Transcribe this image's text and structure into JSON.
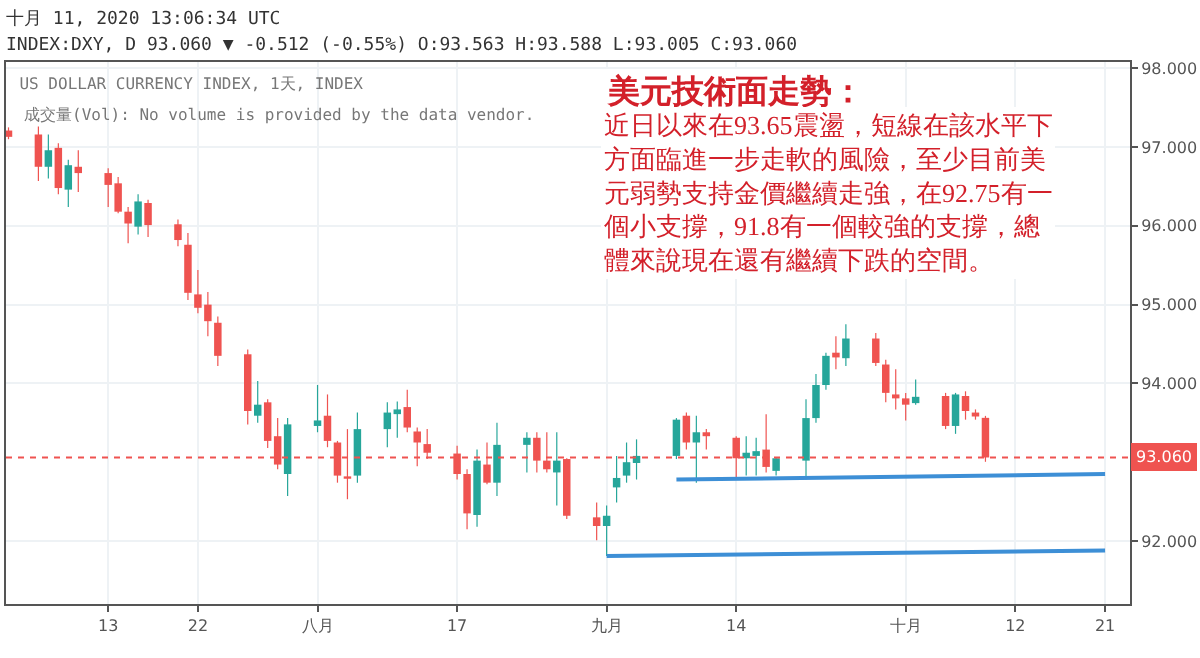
{
  "chart_data": {
    "type": "candlestick",
    "title": "US DOLLAR CURRENCY INDEX, 1天, INDEX",
    "subtitle": "INDEX:DXY, D 93.060 ▼ -0.512 (-0.55%) O:93.563 H:93.588 L:93.005 C:93.060",
    "annotations": [
      "十月 11, 2020 13:06:34 UTC",
      "成交量(Vol): No volume is provided by the data vendor.",
      "美元技術面走勢：",
      "近日以來在93.65震盪，短線在該水平下方面臨進一步走軟的風險，至少目前美元弱勢支持金價繼續走強，在92.75有一個小支撐，91.8有一個較強的支撐，總體來說現在還有繼續下跌的空間。"
    ],
    "x": [
      "2020-07-03",
      "2020-07-06",
      "2020-07-07",
      "2020-07-08",
      "2020-07-09",
      "2020-07-10",
      "2020-07-13",
      "2020-07-14",
      "2020-07-15",
      "2020-07-16",
      "2020-07-17",
      "2020-07-20",
      "2020-07-21",
      "2020-07-22",
      "2020-07-23",
      "2020-07-24",
      "2020-07-27",
      "2020-07-28",
      "2020-07-29",
      "2020-07-30",
      "2020-07-31",
      "2020-08-03",
      "2020-08-04",
      "2020-08-05",
      "2020-08-06",
      "2020-08-07",
      "2020-08-10",
      "2020-08-11",
      "2020-08-12",
      "2020-08-13",
      "2020-08-14",
      "2020-08-17",
      "2020-08-18",
      "2020-08-19",
      "2020-08-20",
      "2020-08-21",
      "2020-08-24",
      "2020-08-25",
      "2020-08-26",
      "2020-08-27",
      "2020-08-28",
      "2020-08-31",
      "2020-09-01",
      "2020-09-02",
      "2020-09-03",
      "2020-09-04",
      "2020-09-08",
      "2020-09-09",
      "2020-09-10",
      "2020-09-11",
      "2020-09-14",
      "2020-09-15",
      "2020-09-16",
      "2020-09-17",
      "2020-09-18",
      "2020-09-21",
      "2020-09-22",
      "2020-09-23",
      "2020-09-24",
      "2020-09-25",
      "2020-09-28",
      "2020-09-29",
      "2020-09-30",
      "2020-10-01",
      "2020-10-02",
      "2020-10-05",
      "2020-10-06",
      "2020-10-07",
      "2020-10-08",
      "2020-10-09"
    ],
    "ohlc": [
      [
        97.21,
        97.25,
        97.1,
        97.13
      ],
      [
        97.16,
        97.26,
        96.57,
        96.75
      ],
      [
        96.75,
        97.16,
        96.6,
        96.96
      ],
      [
        96.99,
        97.05,
        96.4,
        96.48
      ],
      [
        96.46,
        96.84,
        96.24,
        96.77
      ],
      [
        96.75,
        96.96,
        96.43,
        96.67
      ],
      [
        96.67,
        96.73,
        96.24,
        96.52
      ],
      [
        96.54,
        96.62,
        96.16,
        96.18
      ],
      [
        96.18,
        96.24,
        95.78,
        96.03
      ],
      [
        95.99,
        96.4,
        95.89,
        96.31
      ],
      [
        96.29,
        96.33,
        95.86,
        96.01
      ],
      [
        96.02,
        96.08,
        95.74,
        95.82
      ],
      [
        95.76,
        95.91,
        95.06,
        95.15
      ],
      [
        95.13,
        95.44,
        94.89,
        94.96
      ],
      [
        95.0,
        95.16,
        94.6,
        94.79
      ],
      [
        94.77,
        94.85,
        94.22,
        94.35
      ],
      [
        94.37,
        94.43,
        93.48,
        93.65
      ],
      [
        93.59,
        94.03,
        93.5,
        93.73
      ],
      [
        93.76,
        93.8,
        93.18,
        93.27
      ],
      [
        93.33,
        93.56,
        92.91,
        92.97
      ],
      [
        92.85,
        93.56,
        92.57,
        93.48
      ],
      [
        93.46,
        93.98,
        93.38,
        93.53
      ],
      [
        93.59,
        93.86,
        93.19,
        93.27
      ],
      [
        93.25,
        93.27,
        92.74,
        92.83
      ],
      [
        92.82,
        93.42,
        92.53,
        92.79
      ],
      [
        92.83,
        93.63,
        92.74,
        93.42
      ],
      [
        93.42,
        93.76,
        93.19,
        93.63
      ],
      [
        93.61,
        93.77,
        93.31,
        93.67
      ],
      [
        93.7,
        93.92,
        93.38,
        93.44
      ],
      [
        93.39,
        93.44,
        92.95,
        93.25
      ],
      [
        93.23,
        93.42,
        93.04,
        93.12
      ],
      [
        93.11,
        93.21,
        92.78,
        92.85
      ],
      [
        92.85,
        92.91,
        92.15,
        92.35
      ],
      [
        92.33,
        93.16,
        92.18,
        93.02
      ],
      [
        92.97,
        93.25,
        92.72,
        92.74
      ],
      [
        92.74,
        93.5,
        92.57,
        93.22
      ],
      [
        93.22,
        93.38,
        92.87,
        93.31
      ],
      [
        93.31,
        93.38,
        92.87,
        93.02
      ],
      [
        93.02,
        93.38,
        92.87,
        92.91
      ],
      [
        92.87,
        93.38,
        92.45,
        93.02
      ],
      [
        93.04,
        93.05,
        92.28,
        92.32
      ],
      [
        92.3,
        92.49,
        92.01,
        92.19
      ],
      [
        92.19,
        92.45,
        91.81,
        92.32
      ],
      [
        92.68,
        93.08,
        92.49,
        92.8
      ],
      [
        92.83,
        93.25,
        92.74,
        93.0
      ],
      [
        92.99,
        93.29,
        92.78,
        93.08
      ],
      [
        93.08,
        93.56,
        93.04,
        93.54
      ],
      [
        93.59,
        93.63,
        93.16,
        93.25
      ],
      [
        93.25,
        93.59,
        92.74,
        93.38
      ],
      [
        93.38,
        93.42,
        93.16,
        93.33
      ],
      [
        93.31,
        93.33,
        92.78,
        93.05
      ],
      [
        93.05,
        93.33,
        92.83,
        93.12
      ],
      [
        93.08,
        93.31,
        92.83,
        93.14
      ],
      [
        93.16,
        93.61,
        92.87,
        92.94
      ],
      [
        92.89,
        93.06,
        92.83,
        93.05
      ],
      [
        93.02,
        93.8,
        92.78,
        93.56
      ],
      [
        93.56,
        94.12,
        93.5,
        93.98
      ],
      [
        93.98,
        94.39,
        93.92,
        94.35
      ],
      [
        94.39,
        94.6,
        94.18,
        94.33
      ],
      [
        94.32,
        94.75,
        94.22,
        94.57
      ],
      [
        94.57,
        94.64,
        94.22,
        94.26
      ],
      [
        94.24,
        94.3,
        93.76,
        93.88
      ],
      [
        93.86,
        94.18,
        93.67,
        93.81
      ],
      [
        93.81,
        93.88,
        93.53,
        93.73
      ],
      [
        93.75,
        94.05,
        93.73,
        93.83
      ],
      [
        93.84,
        93.88,
        93.42,
        93.46
      ],
      [
        93.46,
        93.88,
        93.36,
        93.86
      ],
      [
        93.84,
        93.9,
        93.54,
        93.65
      ],
      [
        93.63,
        93.67,
        93.54,
        93.58
      ],
      [
        93.563,
        93.588,
        93.005,
        93.06
      ]
    ],
    "series": [
      {
        "type": "line",
        "color": "#3d8fd6",
        "x": [
          "2020-09-08",
          "2020-10-21"
        ],
        "values": [
          92.78,
          92.85
        ]
      },
      {
        "type": "line",
        "color": "#3d8fd6",
        "x": [
          "2020-09-01",
          "2020-10-21"
        ],
        "values": [
          91.81,
          91.88
        ]
      }
    ],
    "xlim": [
      "2020-07-02T18:00",
      "2020-10-23T12:00"
    ],
    "xticks": [
      {
        "value": "2020-07-13",
        "label": "13"
      },
      {
        "value": "2020-07-22",
        "label": "22"
      },
      {
        "value": "2020-08-03",
        "label": "八月"
      },
      {
        "value": "2020-08-17",
        "label": "17"
      },
      {
        "value": "2020-09-01",
        "label": "九月"
      },
      {
        "value": "2020-09-14",
        "label": "14"
      },
      {
        "value": "2020-10-01",
        "label": "十月"
      },
      {
        "value": "2020-10-12",
        "label": "12"
      },
      {
        "value": "2020-10-21",
        "label": "21"
      }
    ],
    "ylim": [
      91.2,
      98.08
    ],
    "yticks": [
      {
        "value": 92,
        "label": "92.000"
      },
      {
        "value": 94,
        "label": "94.000"
      },
      {
        "value": 95,
        "label": "95.000"
      },
      {
        "value": 96,
        "label": "96.000"
      },
      {
        "value": 97,
        "label": "97.000"
      },
      {
        "value": 98,
        "label": "98.000"
      }
    ],
    "ref_lines": [
      {
        "axis": "y",
        "value": 93.06,
        "label": "93.060",
        "color": "#ef5350",
        "line_style": "dotted"
      }
    ],
    "grid": true
  }
}
